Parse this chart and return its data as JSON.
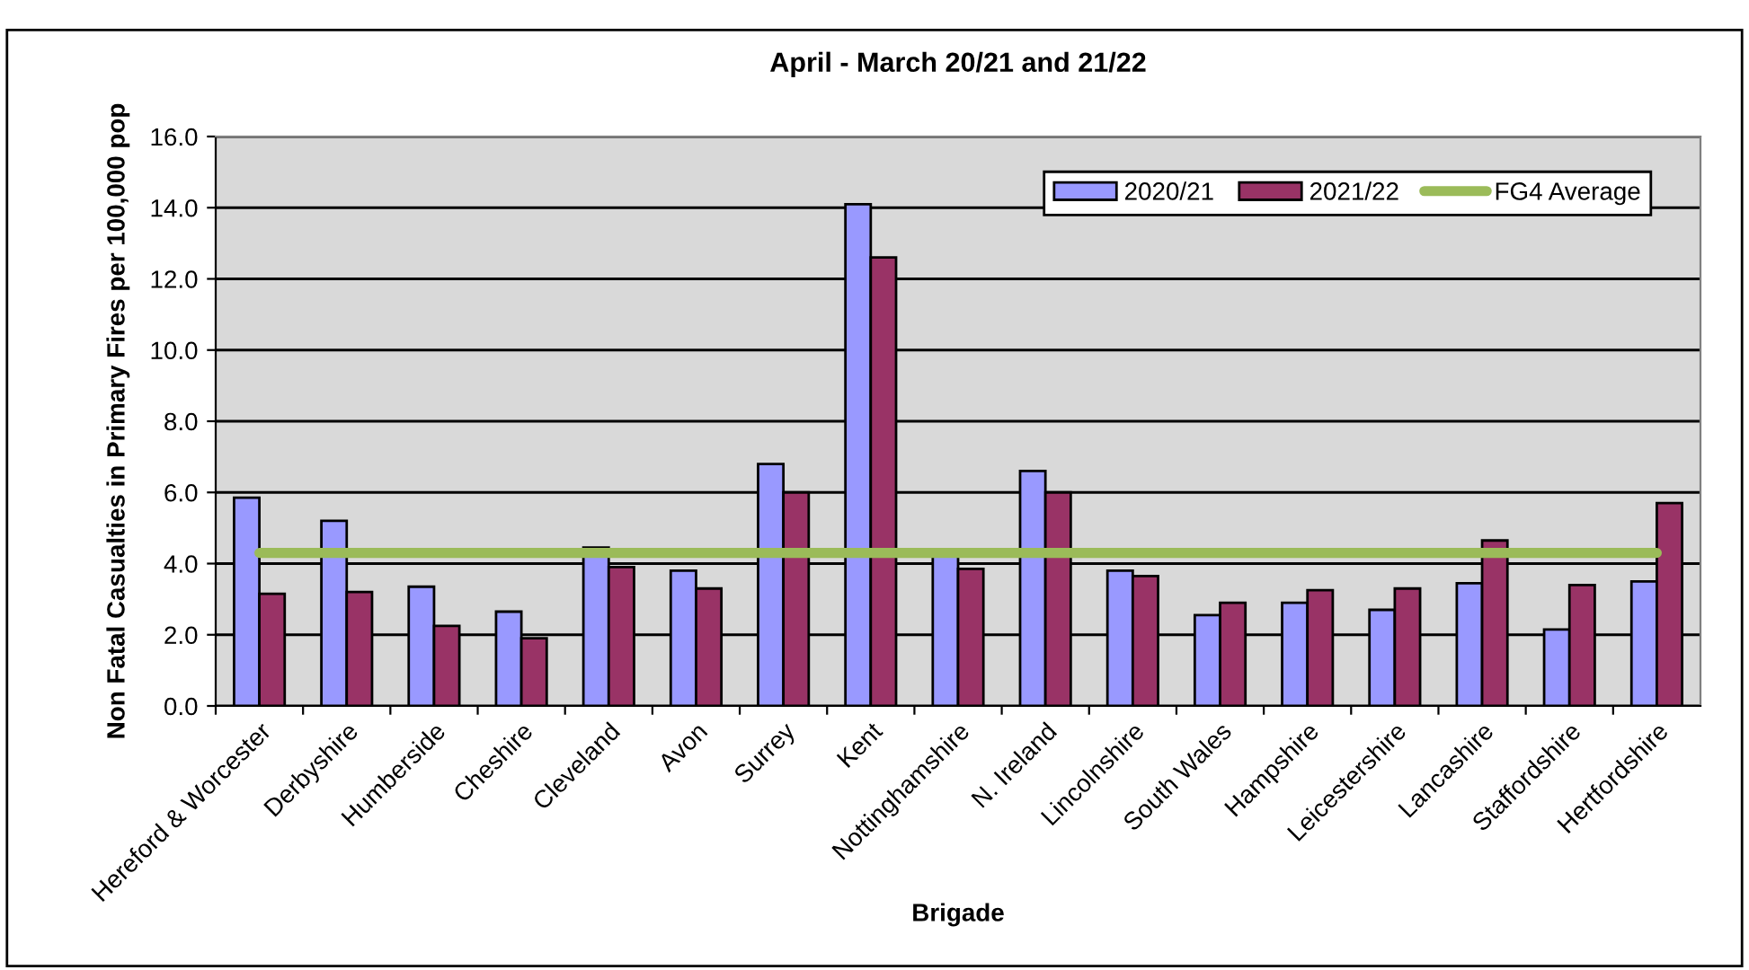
{
  "chart_data": {
    "type": "bar",
    "title": "April - March 20/21 and 21/22",
    "xlabel": "Brigade",
    "ylabel": "Non Fatal Casualties in Primary Fires per 100,000 pop",
    "categories": [
      "Hereford & Worcester",
      "Derbyshire",
      "Humberside",
      "Cheshire",
      "Cleveland",
      "Avon",
      "Surrey",
      "Kent",
      "Nottinghamshire",
      "N. Ireland",
      "Lincolnshire",
      "South Wales",
      "Hampshire",
      "Leicestershire",
      "Lancashire",
      "Staffordshire",
      "Hertfordshire"
    ],
    "series": [
      {
        "name": "2020/21",
        "color": "#9999ff",
        "values": [
          5.85,
          5.2,
          3.35,
          2.65,
          4.45,
          3.8,
          6.8,
          14.1,
          4.2,
          6.6,
          3.8,
          2.55,
          2.9,
          2.7,
          3.45,
          2.15,
          3.5
        ]
      },
      {
        "name": "2021/22",
        "color": "#993366",
        "values": [
          3.15,
          3.2,
          2.25,
          1.9,
          3.9,
          3.3,
          6.0,
          12.6,
          3.85,
          6.0,
          3.65,
          2.9,
          3.25,
          3.3,
          4.65,
          3.4,
          5.7
        ]
      },
      {
        "name": "FG4 Average",
        "type": "line",
        "color": "#9bbb59",
        "values": [
          4.3,
          4.3,
          4.3,
          4.3,
          4.3,
          4.3,
          4.3,
          4.3,
          4.3,
          4.3,
          4.3,
          4.3,
          4.3,
          4.3,
          4.3,
          4.3,
          4.3
        ]
      }
    ],
    "ylim": [
      0,
      16
    ],
    "yticks": [
      {
        "value": 0,
        "label": "0.0"
      },
      {
        "value": 2,
        "label": "2.0"
      },
      {
        "value": 4,
        "label": "4.0"
      },
      {
        "value": 6,
        "label": "6.0"
      },
      {
        "value": 8,
        "label": "8.0"
      },
      {
        "value": 10,
        "label": "10.0"
      },
      {
        "value": 12,
        "label": "12.0"
      },
      {
        "value": 14,
        "label": "14.0"
      },
      {
        "value": 16,
        "label": "16.0"
      }
    ],
    "grid": "y",
    "legend": "top right"
  }
}
